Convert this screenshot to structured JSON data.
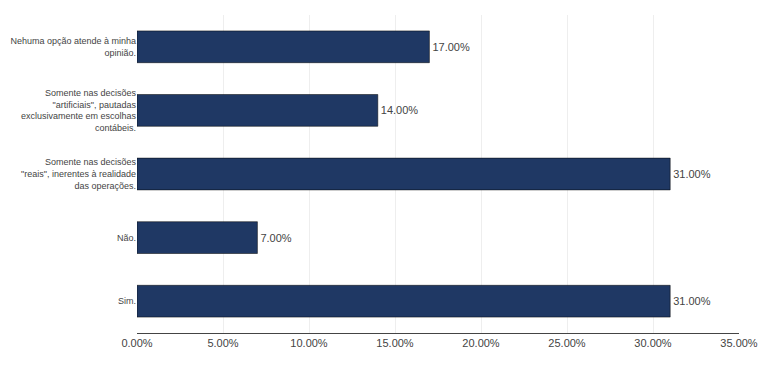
{
  "chart_data": {
    "type": "bar",
    "orientation": "horizontal",
    "categories": [
      "Sim.",
      "Não.",
      "Somente nas decisões\n\"reais\", inerentes à realidade\ndas operações.",
      "Somente nas decisões\n\"artificiais\", pautadas\nexclusivamente em escolhas\ncontábeis.",
      "Nehuma opção atende à minha\nopinião."
    ],
    "values": [
      0.31,
      0.07,
      0.31,
      0.14,
      0.17
    ],
    "value_labels": [
      "31.00%",
      "7.00%",
      "31.00%",
      "14.00%",
      "17.00%"
    ],
    "data_labels": true,
    "color": "#1F3864",
    "xlim": [
      0,
      0.35
    ],
    "xticks": [
      {
        "value": 0.0,
        "label": "0.00%"
      },
      {
        "value": 0.05,
        "label": "5.00%"
      },
      {
        "value": 0.1,
        "label": "10.00%"
      },
      {
        "value": 0.15,
        "label": "15.00%"
      },
      {
        "value": 0.2,
        "label": "20.00%"
      },
      {
        "value": 0.25,
        "label": "25.00%"
      },
      {
        "value": 0.3,
        "label": "30.00%"
      },
      {
        "value": 0.35,
        "label": "35.00%"
      }
    ],
    "grid": true
  }
}
